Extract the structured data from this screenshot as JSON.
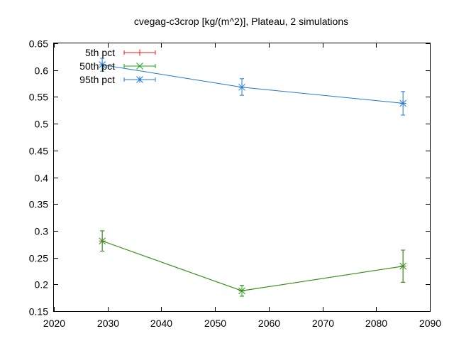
{
  "chart_data": {
    "type": "line",
    "title": "cvegag-c3crop [kg/(m^2)], Plateau, 2 simulations",
    "xlabel": "",
    "ylabel": "",
    "xlim": [
      2020,
      2090
    ],
    "ylim": [
      0.15,
      0.65
    ],
    "x_ticks": [
      "2020",
      "2030",
      "2040",
      "2050",
      "2060",
      "2070",
      "2080",
      "2090"
    ],
    "y_ticks": [
      "0.15",
      "0.2",
      "0.25",
      "0.3",
      "0.35",
      "0.4",
      "0.45",
      "0.5",
      "0.55",
      "0.6",
      "0.65"
    ],
    "grid": false,
    "legend_position": "top-left",
    "series": [
      {
        "name": "5th pct",
        "color": "#e41a1c",
        "marker": "plus",
        "points": [
          {
            "x": 2029,
            "y": 0.281,
            "err_low": 0.262,
            "err_high": 0.3
          },
          {
            "x": 2055,
            "y": 0.188,
            "err_low": 0.178,
            "err_high": 0.198
          },
          {
            "x": 2085,
            "y": 0.234,
            "err_low": 0.204,
            "err_high": 0.264
          }
        ]
      },
      {
        "name": "50th pct",
        "color": "#1aa31a",
        "marker": "cross",
        "points": [
          {
            "x": 2029,
            "y": 0.281,
            "err_low": 0.262,
            "err_high": 0.3
          },
          {
            "x": 2055,
            "y": 0.188,
            "err_low": 0.178,
            "err_high": 0.198
          },
          {
            "x": 2085,
            "y": 0.234,
            "err_low": 0.204,
            "err_high": 0.264
          }
        ]
      },
      {
        "name": "95th pct",
        "color": "#1f78d4",
        "marker": "star",
        "points": [
          {
            "x": 2029,
            "y": 0.61,
            "err_low": 0.598,
            "err_high": 0.622
          },
          {
            "x": 2055,
            "y": 0.568,
            "err_low": 0.553,
            "err_high": 0.584
          },
          {
            "x": 2085,
            "y": 0.538,
            "err_low": 0.516,
            "err_high": 0.56
          }
        ]
      }
    ]
  }
}
